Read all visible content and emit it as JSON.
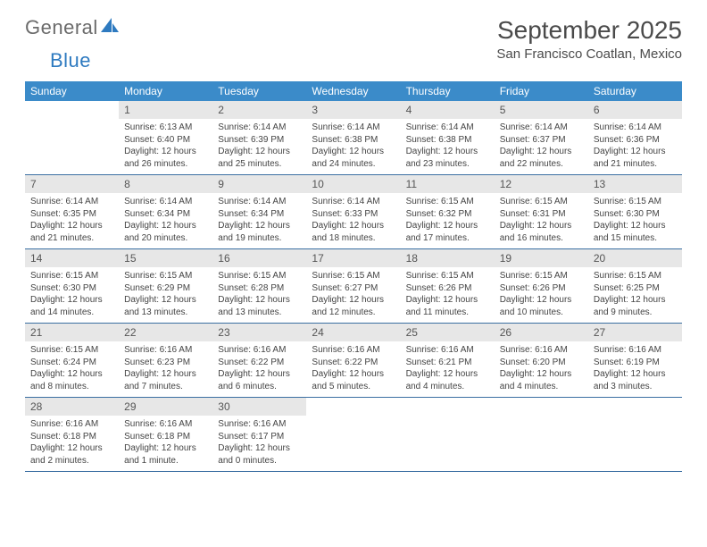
{
  "logo": {
    "part1": "General",
    "part2": "Blue"
  },
  "title": "September 2025",
  "location": "San Francisco Coatlan, Mexico",
  "colors": {
    "header_bg": "#3b8bc9",
    "header_text": "#ffffff",
    "daynum_bg": "#e7e7e7",
    "week_border": "#3b6fa2",
    "body_text": "#444444",
    "title_text": "#4a4a4a"
  },
  "weekdays": [
    "Sunday",
    "Monday",
    "Tuesday",
    "Wednesday",
    "Thursday",
    "Friday",
    "Saturday"
  ],
  "weeks": [
    [
      {
        "n": "",
        "sr": "",
        "ss": "",
        "dl": ""
      },
      {
        "n": "1",
        "sr": "Sunrise: 6:13 AM",
        "ss": "Sunset: 6:40 PM",
        "dl": "Daylight: 12 hours and 26 minutes."
      },
      {
        "n": "2",
        "sr": "Sunrise: 6:14 AM",
        "ss": "Sunset: 6:39 PM",
        "dl": "Daylight: 12 hours and 25 minutes."
      },
      {
        "n": "3",
        "sr": "Sunrise: 6:14 AM",
        "ss": "Sunset: 6:38 PM",
        "dl": "Daylight: 12 hours and 24 minutes."
      },
      {
        "n": "4",
        "sr": "Sunrise: 6:14 AM",
        "ss": "Sunset: 6:38 PM",
        "dl": "Daylight: 12 hours and 23 minutes."
      },
      {
        "n": "5",
        "sr": "Sunrise: 6:14 AM",
        "ss": "Sunset: 6:37 PM",
        "dl": "Daylight: 12 hours and 22 minutes."
      },
      {
        "n": "6",
        "sr": "Sunrise: 6:14 AM",
        "ss": "Sunset: 6:36 PM",
        "dl": "Daylight: 12 hours and 21 minutes."
      }
    ],
    [
      {
        "n": "7",
        "sr": "Sunrise: 6:14 AM",
        "ss": "Sunset: 6:35 PM",
        "dl": "Daylight: 12 hours and 21 minutes."
      },
      {
        "n": "8",
        "sr": "Sunrise: 6:14 AM",
        "ss": "Sunset: 6:34 PM",
        "dl": "Daylight: 12 hours and 20 minutes."
      },
      {
        "n": "9",
        "sr": "Sunrise: 6:14 AM",
        "ss": "Sunset: 6:34 PM",
        "dl": "Daylight: 12 hours and 19 minutes."
      },
      {
        "n": "10",
        "sr": "Sunrise: 6:14 AM",
        "ss": "Sunset: 6:33 PM",
        "dl": "Daylight: 12 hours and 18 minutes."
      },
      {
        "n": "11",
        "sr": "Sunrise: 6:15 AM",
        "ss": "Sunset: 6:32 PM",
        "dl": "Daylight: 12 hours and 17 minutes."
      },
      {
        "n": "12",
        "sr": "Sunrise: 6:15 AM",
        "ss": "Sunset: 6:31 PM",
        "dl": "Daylight: 12 hours and 16 minutes."
      },
      {
        "n": "13",
        "sr": "Sunrise: 6:15 AM",
        "ss": "Sunset: 6:30 PM",
        "dl": "Daylight: 12 hours and 15 minutes."
      }
    ],
    [
      {
        "n": "14",
        "sr": "Sunrise: 6:15 AM",
        "ss": "Sunset: 6:30 PM",
        "dl": "Daylight: 12 hours and 14 minutes."
      },
      {
        "n": "15",
        "sr": "Sunrise: 6:15 AM",
        "ss": "Sunset: 6:29 PM",
        "dl": "Daylight: 12 hours and 13 minutes."
      },
      {
        "n": "16",
        "sr": "Sunrise: 6:15 AM",
        "ss": "Sunset: 6:28 PM",
        "dl": "Daylight: 12 hours and 13 minutes."
      },
      {
        "n": "17",
        "sr": "Sunrise: 6:15 AM",
        "ss": "Sunset: 6:27 PM",
        "dl": "Daylight: 12 hours and 12 minutes."
      },
      {
        "n": "18",
        "sr": "Sunrise: 6:15 AM",
        "ss": "Sunset: 6:26 PM",
        "dl": "Daylight: 12 hours and 11 minutes."
      },
      {
        "n": "19",
        "sr": "Sunrise: 6:15 AM",
        "ss": "Sunset: 6:26 PM",
        "dl": "Daylight: 12 hours and 10 minutes."
      },
      {
        "n": "20",
        "sr": "Sunrise: 6:15 AM",
        "ss": "Sunset: 6:25 PM",
        "dl": "Daylight: 12 hours and 9 minutes."
      }
    ],
    [
      {
        "n": "21",
        "sr": "Sunrise: 6:15 AM",
        "ss": "Sunset: 6:24 PM",
        "dl": "Daylight: 12 hours and 8 minutes."
      },
      {
        "n": "22",
        "sr": "Sunrise: 6:16 AM",
        "ss": "Sunset: 6:23 PM",
        "dl": "Daylight: 12 hours and 7 minutes."
      },
      {
        "n": "23",
        "sr": "Sunrise: 6:16 AM",
        "ss": "Sunset: 6:22 PM",
        "dl": "Daylight: 12 hours and 6 minutes."
      },
      {
        "n": "24",
        "sr": "Sunrise: 6:16 AM",
        "ss": "Sunset: 6:22 PM",
        "dl": "Daylight: 12 hours and 5 minutes."
      },
      {
        "n": "25",
        "sr": "Sunrise: 6:16 AM",
        "ss": "Sunset: 6:21 PM",
        "dl": "Daylight: 12 hours and 4 minutes."
      },
      {
        "n": "26",
        "sr": "Sunrise: 6:16 AM",
        "ss": "Sunset: 6:20 PM",
        "dl": "Daylight: 12 hours and 4 minutes."
      },
      {
        "n": "27",
        "sr": "Sunrise: 6:16 AM",
        "ss": "Sunset: 6:19 PM",
        "dl": "Daylight: 12 hours and 3 minutes."
      }
    ],
    [
      {
        "n": "28",
        "sr": "Sunrise: 6:16 AM",
        "ss": "Sunset: 6:18 PM",
        "dl": "Daylight: 12 hours and 2 minutes."
      },
      {
        "n": "29",
        "sr": "Sunrise: 6:16 AM",
        "ss": "Sunset: 6:18 PM",
        "dl": "Daylight: 12 hours and 1 minute."
      },
      {
        "n": "30",
        "sr": "Sunrise: 6:16 AM",
        "ss": "Sunset: 6:17 PM",
        "dl": "Daylight: 12 hours and 0 minutes."
      },
      {
        "n": "",
        "sr": "",
        "ss": "",
        "dl": ""
      },
      {
        "n": "",
        "sr": "",
        "ss": "",
        "dl": ""
      },
      {
        "n": "",
        "sr": "",
        "ss": "",
        "dl": ""
      },
      {
        "n": "",
        "sr": "",
        "ss": "",
        "dl": ""
      }
    ]
  ]
}
